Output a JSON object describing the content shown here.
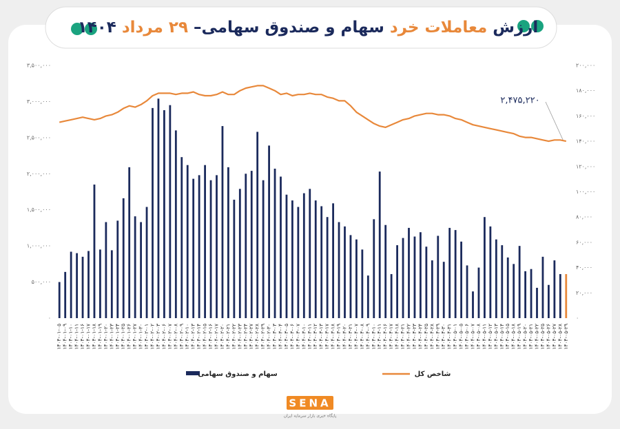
{
  "chart_data": {
    "type": "bar_line",
    "title_parts": [
      {
        "text": "ارزش",
        "color": "#1b2a5c"
      },
      {
        "text": " معاملات خرد ",
        "color": "#e8883a"
      },
      {
        "text": "سهام و صندوق سهامی– ",
        "color": "#1b2a5c"
      },
      {
        "text": "۲۹ مرداد ",
        "color": "#e8883a"
      },
      {
        "text": "۱۴۰۴",
        "color": "#1b2a5c"
      }
    ],
    "categories": [
      "۱۴۰۴-۰۱-۰۵",
      "۱۴۰۴-۰۱-۰۹",
      "۱۴۰۴-۰۱-۱۰",
      "۱۴۰۴-۰۱-۱۱",
      "۱۴۰۴-۰۱-۱۶",
      "۱۴۰۴-۰۱-۱۷",
      "۱۴۰۴-۰۱-۱۸",
      "۱۴۰۴-۰۱-۱۹",
      "۱۴۰۴-۰۱-۲۰",
      "۱۴۰۴-۰۱-۲۳",
      "۱۴۰۴-۰۱-۲۴",
      "۱۴۰۴-۰۱-۲۵",
      "۱۴۰۴-۰۱-۲۶",
      "۱۴۰۴-۰۱-۲۷",
      "۱۴۰۴-۰۱-۳۰",
      "۱۴۰۴-۰۲-۰۱",
      "۱۴۰۴-۰۲-۰۲",
      "۱۴۰۴-۰۲-۰۳",
      "۱۴۰۴-۰۲-۰۶",
      "۱۴۰۴-۰۲-۰۷",
      "۱۴۰۴-۰۲-۰۸",
      "۱۴۰۴-۰۲-۰۹",
      "۱۴۰۴-۰۲-۱۰",
      "۱۴۰۴-۰۲-۱۳",
      "۱۴۰۴-۰۲-۱۴",
      "۱۴۰۴-۰۲-۱۵",
      "۱۴۰۴-۰۲-۱۶",
      "۱۴۰۴-۰۲-۱۷",
      "۱۴۰۴-۰۲-۲۰",
      "۱۴۰۴-۰۲-۲۱",
      "۱۴۰۴-۰۲-۲۲",
      "۱۴۰۴-۰۲-۲۳",
      "۱۴۰۴-۰۲-۲۴",
      "۱۴۰۴-۰۲-۲۷",
      "۱۴۰۴-۰۲-۲۸",
      "۱۴۰۴-۰۲-۲۹",
      "۱۴۰۴-۰۲-۳۰",
      "۱۴۰۴-۰۳-۰۳",
      "۱۴۰۴-۰۳-۰۴",
      "۱۴۰۴-۰۳-۰۵",
      "۱۴۰۴-۰۳-۰۶",
      "۱۴۰۴-۰۳-۰۷",
      "۱۴۰۴-۰۳-۱۰",
      "۱۴۰۴-۰۳-۱۱",
      "۱۴۰۴-۰۳-۱۲",
      "۱۴۰۴-۰۳-۱۳",
      "۱۴۰۴-۰۳-۱۷",
      "۱۴۰۴-۰۳-۱۸",
      "۱۴۰۴-۰۳-۱۹",
      "۱۴۰۴-۰۳-۲۰",
      "۱۴۰۴-۰۳-۲۱",
      "۱۴۰۴-۰۴-۰۷",
      "۱۴۰۴-۰۴-۰۸",
      "۱۴۰۴-۰۴-۰۹",
      "۱۴۰۴-۰۴-۱۰",
      "۱۴۰۴-۰۴-۱۱",
      "۱۴۰۴-۰۴-۱۶",
      "۱۴۰۴-۰۴-۱۷",
      "۱۴۰۴-۰۴-۱۸",
      "۱۴۰۴-۰۴-۲۱",
      "۱۴۰۴-۰۴-۲۲",
      "۱۴۰۴-۰۴-۲۳",
      "۱۴۰۴-۰۴-۲۴",
      "۱۴۰۴-۰۴-۲۵",
      "۱۴۰۴-۰۴-۲۸",
      "۱۴۰۴-۰۴-۲۹",
      "۱۴۰۴-۰۴-۳۰",
      "۱۴۰۴-۰۴-۳۱",
      "۱۴۰۴-۰۵-۰۱",
      "۱۴۰۴-۰۵-۰۵",
      "۱۴۰۴-۰۵-۰۶",
      "۱۴۰۴-۰۵-۰۷",
      "۱۴۰۴-۰۵-۰۸",
      "۱۴۰۴-۰۵-۱۱",
      "۱۴۰۴-۰۵-۱۲",
      "۱۴۰۴-۰۵-۱۳",
      "۱۴۰۴-۰۵-۱۴",
      "۱۴۰۴-۰۵-۱۵",
      "۱۴۰۴-۰۵-۱۸",
      "۱۴۰۴-۰۵-۱۹",
      "۱۴۰۴-۰۵-۲۰",
      "۱۴۰۴-۰۵-۲۱",
      "۱۴۰۴-۰۵-۲۲",
      "۱۴۰۴-۰۵-۲۵",
      "۱۴۰۴-۰۵-۲۶",
      "۱۴۰۴-۰۵-۲۷",
      "۱۴۰۴-۰۵-۲۸",
      "۱۴۰۴-۰۵-۲۹"
    ],
    "series": [
      {
        "name": "سهام و صندوق سهامی",
        "color": "#1b2a5c",
        "last_bar_color": "#e8883a",
        "values": [
          500000,
          640000,
          920000,
          900000,
          850000,
          930000,
          1850000,
          950000,
          1330000,
          940000,
          1350000,
          1660000,
          2090000,
          1410000,
          1330000,
          1540000,
          2910000,
          3040000,
          2880000,
          2950000,
          2600000,
          2230000,
          2120000,
          1930000,
          1980000,
          2120000,
          1910000,
          1980000,
          2660000,
          2090000,
          1640000,
          1790000,
          2000000,
          2040000,
          2580000,
          1910000,
          2390000,
          2070000,
          1960000,
          1710000,
          1630000,
          1540000,
          1730000,
          1790000,
          1630000,
          1550000,
          1400000,
          1590000,
          1330000,
          1270000,
          1150000,
          1090000,
          950000,
          590000,
          1370000,
          2030000,
          1290000,
          610000,
          1010000,
          1110000,
          1250000,
          1130000,
          1190000,
          990000,
          800000,
          1140000,
          780000,
          1250000,
          1220000,
          1060000,
          730000,
          370000,
          700000,
          1400000,
          1270000,
          1090000,
          1010000,
          840000,
          750000,
          1000000,
          650000,
          680000,
          420000,
          850000,
          460000,
          800000,
          610000,
          610000
        ]
      },
      {
        "name": "شاخص کل",
        "color": "#e8883a",
        "axis": "y2",
        "values": [
          155000,
          156000,
          157000,
          158000,
          159000,
          158000,
          157000,
          158000,
          160000,
          161000,
          163000,
          166000,
          168000,
          167000,
          169000,
          172000,
          176000,
          178000,
          178000,
          178000,
          177000,
          178000,
          178000,
          179000,
          177000,
          176000,
          176000,
          177000,
          179000,
          177000,
          177000,
          180000,
          182000,
          183000,
          184000,
          184000,
          182000,
          180000,
          177000,
          178000,
          176000,
          177000,
          177000,
          178000,
          177000,
          177000,
          175000,
          174000,
          172000,
          172000,
          168000,
          163000,
          160000,
          157000,
          154000,
          152000,
          151000,
          153000,
          155000,
          157000,
          158000,
          160000,
          161000,
          162000,
          162000,
          161000,
          161000,
          160000,
          158000,
          157000,
          155000,
          153000,
          152000,
          151000,
          150000,
          149000,
          148000,
          147000,
          146000,
          144000,
          143000,
          143000,
          142000,
          141000,
          140000,
          141000,
          141000,
          140000
        ]
      }
    ],
    "ylim": [
      0,
      3500000
    ],
    "yticks": [
      {
        "value": 0,
        "label": "۰"
      },
      {
        "value": 500000,
        "label": "۵۰۰,۰۰۰"
      },
      {
        "value": 1000000,
        "label": "۱,۰۰۰,۰۰۰"
      },
      {
        "value": 1500000,
        "label": "۱,۵۰۰,۰۰۰"
      },
      {
        "value": 2000000,
        "label": "۲,۰۰۰,۰۰۰"
      },
      {
        "value": 2500000,
        "label": "۲,۵۰۰,۰۰۰"
      },
      {
        "value": 3000000,
        "label": "۳,۰۰۰,۰۰۰"
      },
      {
        "value": 3500000,
        "label": "۳,۵۰۰,۰۰۰"
      }
    ],
    "y2lim": [
      0,
      200000
    ],
    "y2ticks": [
      {
        "value": 0,
        "label": "۰"
      },
      {
        "value": 20000,
        "label": "۲۰,۰۰۰"
      },
      {
        "value": 40000,
        "label": "۴۰,۰۰۰"
      },
      {
        "value": 60000,
        "label": "۶۰,۰۰۰"
      },
      {
        "value": 80000,
        "label": "۸۰,۰۰۰"
      },
      {
        "value": 100000,
        "label": "۱۰۰,۰۰۰"
      },
      {
        "value": 120000,
        "label": "۱۲۰,۰۰۰"
      },
      {
        "value": 140000,
        "label": "۱۴۰,۰۰۰"
      },
      {
        "value": 160000,
        "label": "۱۶۰,۰۰۰"
      },
      {
        "value": 180000,
        "label": "۱۸۰,۰۰۰"
      },
      {
        "value": 200000,
        "label": "۲۰۰,۰۰۰"
      }
    ],
    "annotation": "۲,۴۷۵,۲۲۰",
    "grid": false,
    "logo": {
      "text": "SENA",
      "tagline": "پایگاه خبری بازار سرمایه ایران",
      "color": "#f08a24"
    }
  }
}
